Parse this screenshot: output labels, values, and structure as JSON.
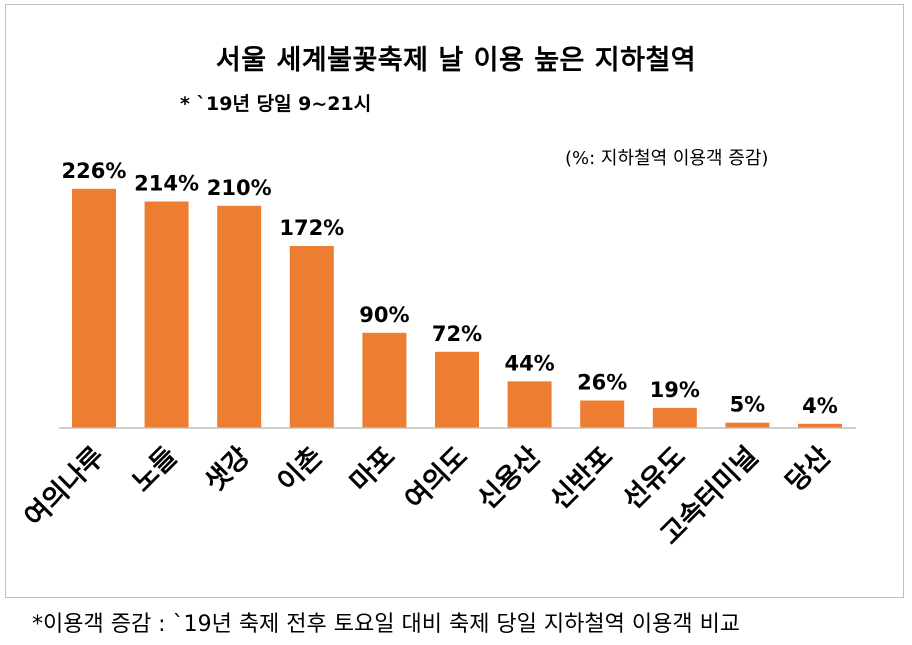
{
  "title": "서울 세계불꽃축제 날 이용 높은 지하철역",
  "subtitle": "* `19년 당일 9~21시",
  "unit_note": "(%: 지하철역 이용객 증감)",
  "footnote": "*이용객 증감 : `19년 축제 전후 토요일 대비 축제 당일 지하철역 이용객 비교",
  "colors": {
    "bar": "#ed7d31",
    "axis": "#bfbfbf"
  },
  "chart_data": {
    "type": "bar",
    "title": "서울 세계불꽃축제 날 이용 높은 지하철역",
    "categories": [
      "여의나루",
      "노들",
      "샛강",
      "이촌",
      "마포",
      "여의도",
      "신용산",
      "신반포",
      "선유도",
      "고속터미널",
      "당산"
    ],
    "values": [
      226,
      214,
      210,
      172,
      90,
      72,
      44,
      26,
      19,
      5,
      4
    ],
    "value_labels": [
      "226%",
      "214%",
      "210%",
      "172%",
      "90%",
      "72%",
      "44%",
      "26%",
      "19%",
      "5%",
      "4%"
    ],
    "ylim": [
      0,
      240
    ],
    "grid": false,
    "legend": "none"
  }
}
